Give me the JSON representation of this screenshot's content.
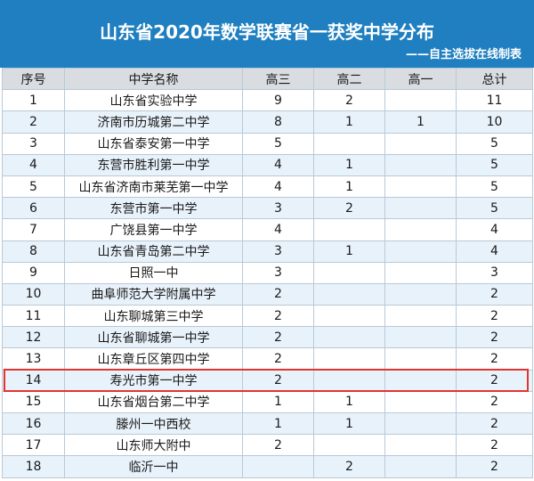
{
  "title": "山东省2020年数学联赛省一获奖中学分布",
  "subtitle": "——自主选拔在线制表",
  "columns": [
    "序号",
    "中学名称",
    "高三",
    "高二",
    "高一",
    "总计"
  ],
  "rows": [
    [
      "1",
      "山东省实验中学",
      "9",
      "2",
      "",
      "11"
    ],
    [
      "2",
      "济南市历城第二中学",
      "8",
      "1",
      "1",
      "10"
    ],
    [
      "3",
      "山东省泰安第一中学",
      "5",
      "",
      "",
      "5"
    ],
    [
      "4",
      "东营市胜利第一中学",
      "4",
      "1",
      "",
      "5"
    ],
    [
      "5",
      "山东省济南市莱芜第一中学",
      "4",
      "1",
      "",
      "5"
    ],
    [
      "6",
      "东营市第一中学",
      "3",
      "2",
      "",
      "5"
    ],
    [
      "7",
      "广饶县第一中学",
      "4",
      "",
      "",
      "4"
    ],
    [
      "8",
      "山东省青岛第二中学",
      "3",
      "1",
      "",
      "4"
    ],
    [
      "9",
      "日照一中",
      "3",
      "",
      "",
      "3"
    ],
    [
      "10",
      "曲阜师范大学附属中学",
      "2",
      "",
      "",
      "2"
    ],
    [
      "11",
      "山东聊城第三中学",
      "2",
      "",
      "",
      "2"
    ],
    [
      "12",
      "山东省聊城第一中学",
      "2",
      "",
      "",
      "2"
    ],
    [
      "13",
      "山东章丘区第四中学",
      "2",
      "",
      "",
      "2"
    ],
    [
      "14",
      "寿光市第一中学",
      "2",
      "",
      "",
      "2"
    ],
    [
      "15",
      "山东省烟台第二中学",
      "1",
      "1",
      "",
      "2"
    ],
    [
      "16",
      "滕州一中西校",
      "1",
      "1",
      "",
      "2"
    ],
    [
      "17",
      "山东师大附中",
      "2",
      "",
      "",
      "2"
    ],
    [
      "18",
      "临沂一中",
      "",
      "2",
      "",
      "2"
    ]
  ],
  "highlight_row": 14,
  "colors": {
    "header_bg": "#1f7fc0",
    "highlight_border": "#e2352f"
  }
}
